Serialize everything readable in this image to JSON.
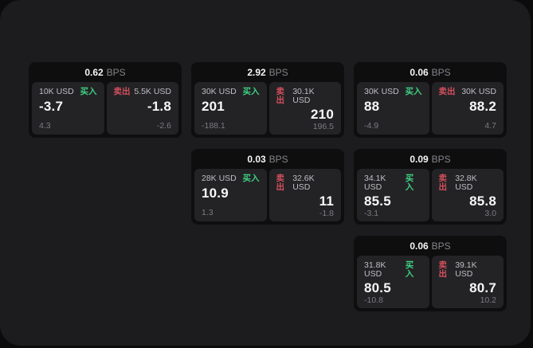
{
  "labels": {
    "bps": "BPS",
    "buy": "买入",
    "sell": "卖出"
  },
  "colors": {
    "buy_green": "#3ecf80",
    "sell_red": "#d34f5c",
    "surface": "#1c1c1e",
    "card_background": "#0e0e0f",
    "panel_background": "#232326"
  },
  "cards": [
    {
      "bps": "0.62",
      "buy": {
        "amount": "10K USD",
        "price": "-3.7",
        "change": "4.3"
      },
      "sell": {
        "amount": "5.5K USD",
        "price": "-1.8",
        "change": "-2.6"
      }
    },
    {
      "bps": "2.92",
      "buy": {
        "amount": "30K USD",
        "price": "201",
        "change": "-188.1"
      },
      "sell": {
        "amount": "30.1K USD",
        "price": "210",
        "change": "196.5"
      }
    },
    {
      "bps": "0.06",
      "buy": {
        "amount": "30K USD",
        "price": "88",
        "change": "-4.9"
      },
      "sell": {
        "amount": "30K USD",
        "price": "88.2",
        "change": "4.7"
      }
    },
    {
      "bps": "0.03",
      "buy": {
        "amount": "28K USD",
        "price": "10.9",
        "change": "1.3"
      },
      "sell": {
        "amount": "32.6K USD",
        "price": "11",
        "change": "-1.8"
      }
    },
    {
      "bps": "0.09",
      "buy": {
        "amount": "34.1K USD",
        "price": "85.5",
        "change": "-3.1"
      },
      "sell": {
        "amount": "32.8K USD",
        "price": "85.8",
        "change": "3.0"
      }
    },
    {
      "bps": "0.06",
      "buy": {
        "amount": "31.8K USD",
        "price": "80.5",
        "change": "-10.8"
      },
      "sell": {
        "amount": "39.1K USD",
        "price": "80.7",
        "change": "10.2"
      }
    }
  ]
}
